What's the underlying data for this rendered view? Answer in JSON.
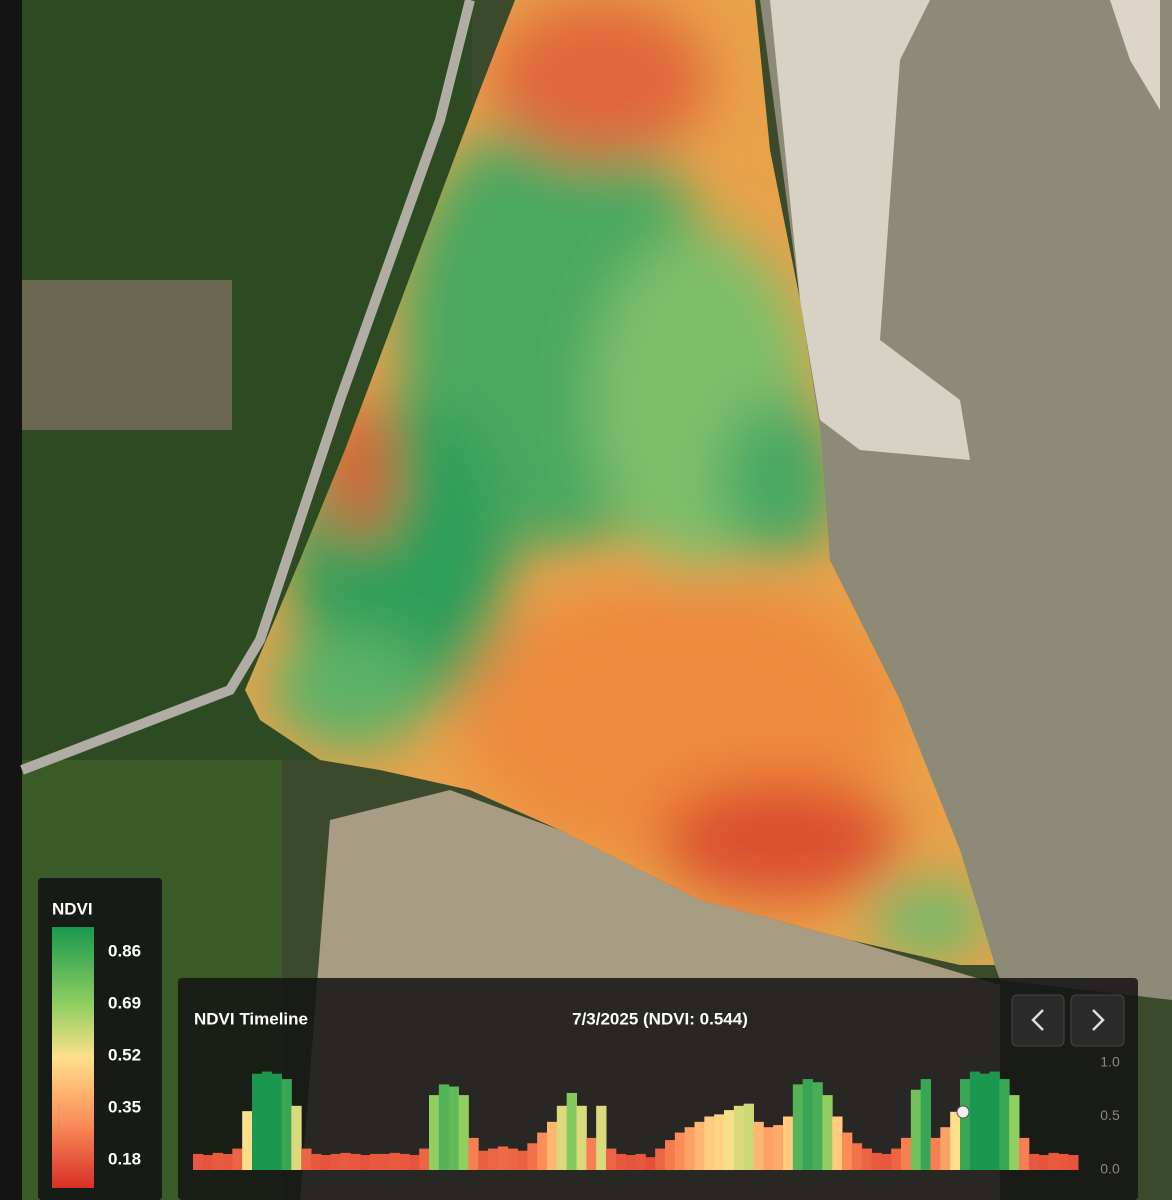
{
  "legend": {
    "title": "NDVI",
    "labels": [
      "0.86",
      "0.69",
      "0.52",
      "0.35",
      "0.18"
    ]
  },
  "timeline": {
    "title": "NDVI Timeline",
    "selected": "7/3/2025 (NDVI: 0.544)",
    "chart_data": {
      "type": "bar",
      "values": [
        0.15,
        0.14,
        0.16,
        0.15,
        0.2,
        0.55,
        0.9,
        0.92,
        0.9,
        0.85,
        0.6,
        0.2,
        0.15,
        0.14,
        0.15,
        0.16,
        0.15,
        0.14,
        0.15,
        0.15,
        0.16,
        0.15,
        0.14,
        0.2,
        0.7,
        0.8,
        0.78,
        0.7,
        0.3,
        0.18,
        0.2,
        0.22,
        0.2,
        0.18,
        0.25,
        0.35,
        0.45,
        0.6,
        0.72,
        0.6,
        0.3,
        0.6,
        0.2,
        0.15,
        0.14,
        0.15,
        0.12,
        0.2,
        0.28,
        0.35,
        0.4,
        0.45,
        0.5,
        0.52,
        0.56,
        0.6,
        0.62,
        0.45,
        0.4,
        0.42,
        0.5,
        0.8,
        0.85,
        0.82,
        0.7,
        0.5,
        0.35,
        0.25,
        0.2,
        0.16,
        0.15,
        0.2,
        0.3,
        0.75,
        0.85,
        0.3,
        0.4,
        0.544,
        0.85,
        0.92,
        0.9,
        0.92,
        0.85,
        0.7,
        0.3,
        0.15,
        0.14,
        0.16,
        0.15,
        0.14
      ],
      "ylim": [
        0,
        1
      ],
      "yticks": [
        {
          "value": 1,
          "label": "1.0"
        },
        {
          "value": 0.5,
          "label": "0.5"
        },
        {
          "value": 0,
          "label": "0.0"
        }
      ]
    }
  }
}
